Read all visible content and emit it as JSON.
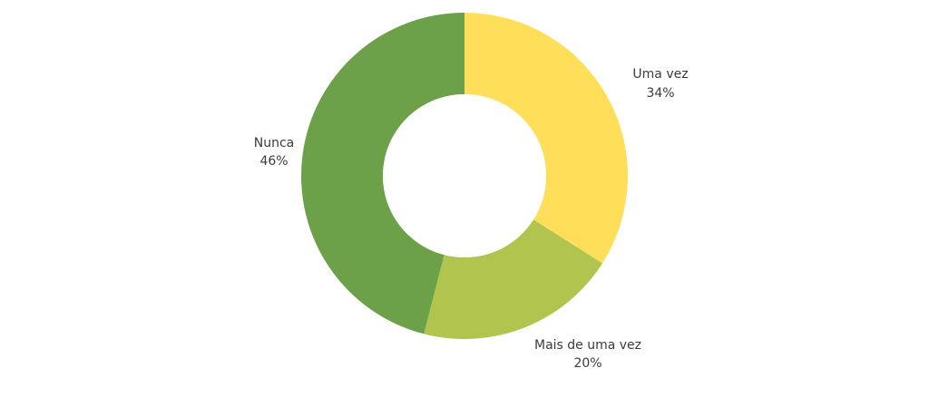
{
  "chart_data": {
    "type": "pie",
    "variant": "donut",
    "slices": [
      {
        "label": "Uma vez",
        "value": 34,
        "value_label": "34%",
        "color": "#FFDE59"
      },
      {
        "label": "Mais de uma vez",
        "value": 20,
        "value_label": "20%",
        "color": "#B1C44E"
      },
      {
        "label": "Nunca",
        "value": 46,
        "value_label": "46%",
        "color": "#6CA049"
      }
    ],
    "legend": "none"
  }
}
